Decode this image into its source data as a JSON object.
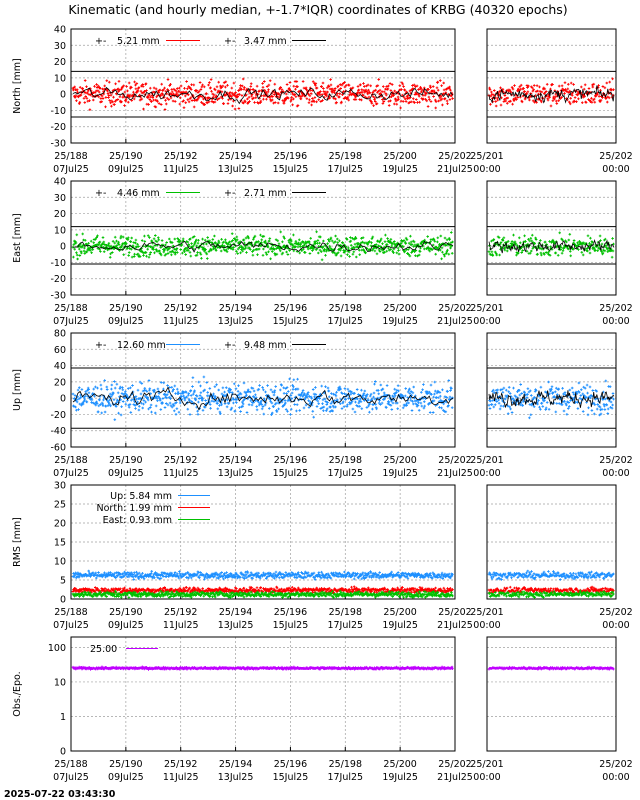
{
  "title": "Kinematic (and hourly median, +-1.7*IQR) coordinates of KRBG (40320 epochs)",
  "timestamp": "2025-07-22 03:43:30",
  "colors": {
    "north": "#ff0000",
    "east": "#00c000",
    "up": "#1e90ff",
    "obs": "#c000ff",
    "median": "#000000",
    "frame": "#000000"
  },
  "x_main": {
    "range": [
      188,
      202
    ],
    "ticks": [
      {
        "v": 188,
        "l1": "25/188",
        "l2": "07Jul25"
      },
      {
        "v": 190,
        "l1": "25/190",
        "l2": "09Jul25"
      },
      {
        "v": 192,
        "l1": "25/192",
        "l2": "11Jul25"
      },
      {
        "v": 194,
        "l1": "25/194",
        "l2": "13Jul25"
      },
      {
        "v": 196,
        "l1": "25/196",
        "l2": "15Jul25"
      },
      {
        "v": 198,
        "l1": "25/198",
        "l2": "17Jul25"
      },
      {
        "v": 200,
        "l1": "25/200",
        "l2": "19Jul25"
      },
      {
        "v": 202,
        "l1": "25/202",
        "l2": "21Jul25"
      }
    ]
  },
  "x_zoom": {
    "range": [
      201,
      202
    ],
    "ticks": [
      {
        "v": 201,
        "l1": "25/201",
        "l2": "00:00"
      },
      {
        "v": 202,
        "l1": "25/202",
        "l2": "00:00"
      }
    ]
  },
  "chart_data": [
    {
      "id": "north",
      "type": "scatter",
      "ylabel": "North [mm]",
      "ylim": [
        -30,
        40
      ],
      "yticks": [
        -30,
        -20,
        -10,
        0,
        10,
        20,
        30,
        40
      ],
      "color_key": "north",
      "amplitude": 5.21,
      "median_amplitude": 3.47,
      "limit_lines": [
        14,
        -14
      ],
      "grid": true,
      "legend": [
        {
          "symbol": "+-",
          "label": "5.21 mm",
          "color_key": "north"
        },
        {
          "symbol": "+-",
          "label": "3.47 mm",
          "color_key": "median"
        }
      ]
    },
    {
      "id": "east",
      "type": "scatter",
      "ylabel": "East [mm]",
      "ylim": [
        -30,
        40
      ],
      "yticks": [
        -30,
        -20,
        -10,
        0,
        10,
        20,
        30,
        40
      ],
      "color_key": "east",
      "amplitude": 4.46,
      "median_amplitude": 2.71,
      "limit_lines": [
        12,
        -11
      ],
      "grid": true,
      "legend": [
        {
          "symbol": "+-",
          "label": "4.46 mm",
          "color_key": "east"
        },
        {
          "symbol": "+-",
          "label": "2.71 mm",
          "color_key": "median"
        }
      ]
    },
    {
      "id": "up",
      "type": "scatter",
      "ylabel": "Up [mm]",
      "ylim": [
        -60,
        80
      ],
      "yticks": [
        -60,
        -40,
        -20,
        0,
        20,
        40,
        60,
        80
      ],
      "color_key": "up",
      "amplitude": 12.6,
      "median_amplitude": 9.48,
      "limit_lines": [
        37,
        -37
      ],
      "grid": true,
      "legend": [
        {
          "symbol": "+-",
          "label": "12.60 mm",
          "color_key": "up"
        },
        {
          "symbol": "+-",
          "label": "9.48 mm",
          "color_key": "median"
        }
      ]
    },
    {
      "id": "rms",
      "type": "scatter",
      "ylabel": "RMS [mm]",
      "ylim": [
        0,
        30
      ],
      "yticks": [
        0,
        5,
        10,
        15,
        20,
        25,
        30
      ],
      "grid": true,
      "series": [
        {
          "name": "Up",
          "label": "Up:   5.84 mm",
          "value": 5.84,
          "color_key": "up"
        },
        {
          "name": "North",
          "label": "North:  1.99 mm",
          "value": 1.99,
          "color_key": "north"
        },
        {
          "name": "East",
          "label": "East:  0.93 mm",
          "value": 0.93,
          "color_key": "east"
        }
      ]
    },
    {
      "id": "obs",
      "type": "scatter",
      "ylabel": "Obs./Epo.",
      "yscale": "log",
      "ylim": [
        0.1,
        200
      ],
      "yticks": [
        {
          "v": 0.1,
          "l": "0"
        },
        {
          "v": 1,
          "l": "1"
        },
        {
          "v": 10,
          "l": "10"
        },
        {
          "v": 100,
          "l": "100"
        }
      ],
      "grid": true,
      "value": 25.0,
      "color_key": "obs",
      "legend": [
        {
          "symbol": "",
          "label": "25.00",
          "color_key": "obs"
        }
      ]
    }
  ]
}
